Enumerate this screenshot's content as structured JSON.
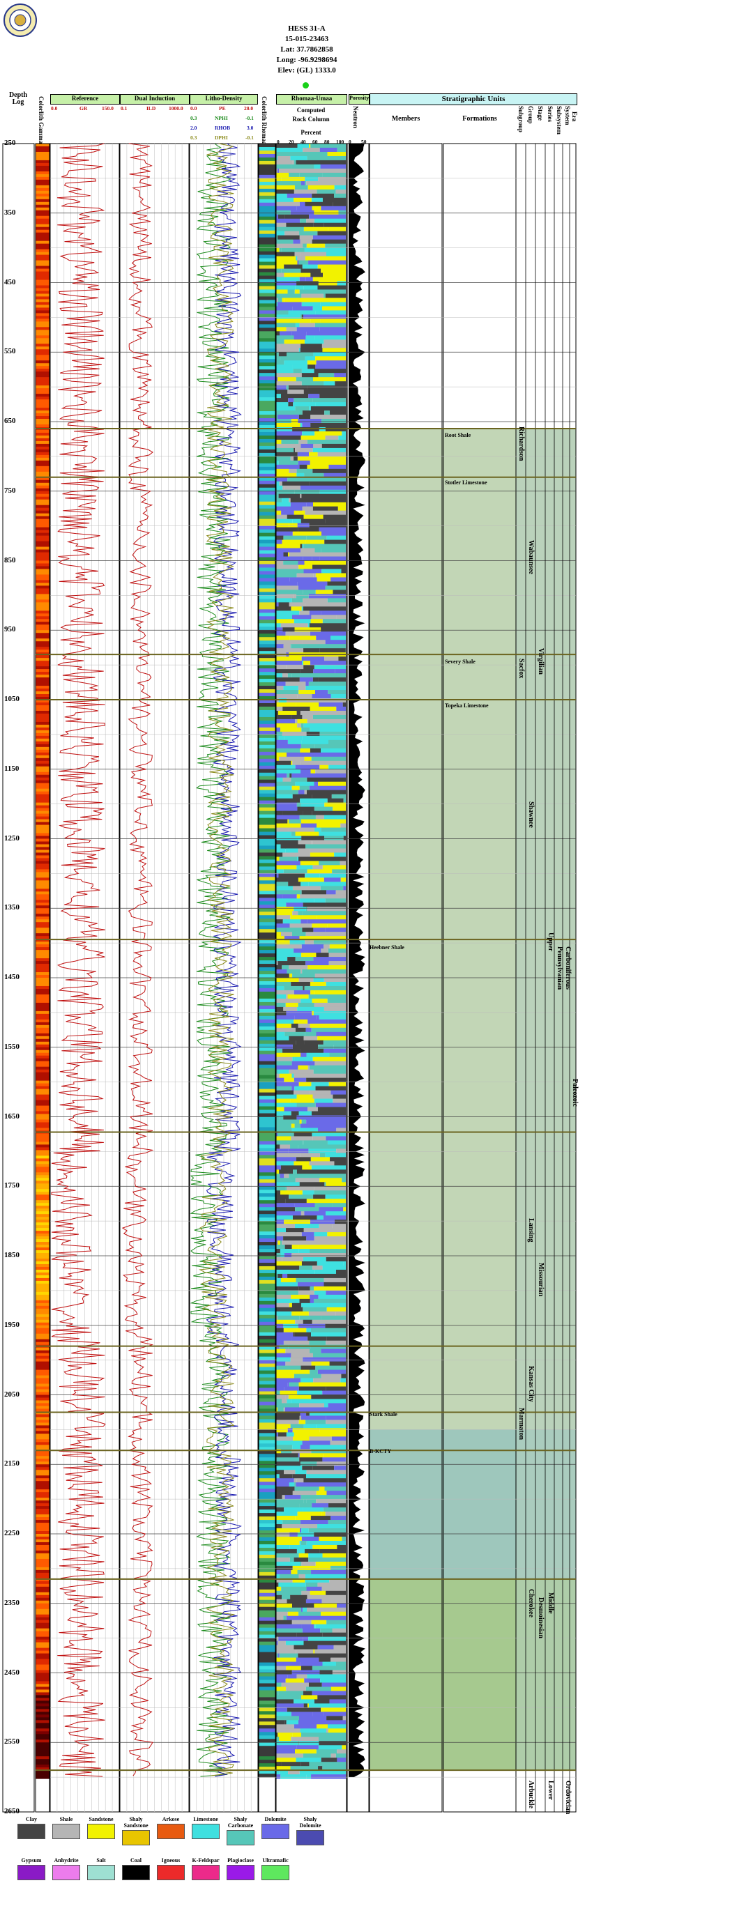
{
  "well": {
    "name": "HESS 31-A",
    "api": "15-015-23463",
    "lat": "Lat: 37.7862858",
    "long": "Long: -96.9298694",
    "elev": "Elev: (GL) 1333.0"
  },
  "columns": {
    "depth_log": "Depth Log",
    "colorlith": "Colorlith Gamma Ray",
    "reference": "Reference",
    "gr_left": "0.0",
    "gr": "GR",
    "gr_right": "150.0",
    "dual_induction": "Dual Induction",
    "ild_left": "0.1",
    "ild": "ILD",
    "ild_right": "1000.0",
    "litho_density": "Litho-Density",
    "pe_left": "0.0",
    "pe": "PE",
    "pe_right": "20.0",
    "nphi_left": "0.3",
    "nphi": "NPHI",
    "nphi_right": "-0.1",
    "rhob_left": "2.0",
    "rhob": "RHOB",
    "rhob_right": "3.0",
    "dphi_left": "0.3",
    "dphi": "DPHI",
    "dphi_right": "-0.1",
    "colorlith_rhomaa": "Colorlith Rhomaa Umaa",
    "rhomaa_umaa": "Rhomaa-Umaa",
    "computed": "Computed",
    "rock_column": "Rock Column",
    "percent": "Percent",
    "pct_ticks": [
      "0",
      "20",
      "40",
      "60",
      "80",
      "100"
    ],
    "porosity": "Porosity",
    "neutron": "Neutron",
    "por_left": "0",
    "por_right": "50",
    "strat_units": "Stratigraphic Units",
    "members": "Members",
    "formations": "Formations",
    "subgroup": "Subgroup",
    "group": "Group",
    "stage": "Stage",
    "series": "Series",
    "subsystem": "Subsystem",
    "system": "System",
    "era": "Era"
  },
  "depth_ticks": [
    "250",
    "350",
    "450",
    "550",
    "650",
    "750",
    "850",
    "950",
    "1050",
    "1150",
    "1250",
    "1350",
    "1450",
    "1550",
    "1650",
    "1750",
    "1850",
    "1950",
    "2050",
    "2150",
    "2250",
    "2350",
    "2450",
    "2550",
    "2650"
  ],
  "strat": {
    "members": [
      "Root Shale",
      "Stotler Limestone",
      "Severy Shale",
      "Topeka Limestone",
      "Heebner Shale",
      "Stark Shale",
      "B-KCTY"
    ],
    "subgroups": [
      "Richardson",
      "Sacfox"
    ],
    "groups": [
      "Wabaunsee",
      "Shawnee",
      "Lansing",
      "Kansas City",
      "Marmaton",
      "Cherokee",
      "Arbuckle"
    ],
    "stages": [
      "Virgilian",
      "Missourian",
      "Desmoinesian"
    ],
    "series": [
      "Upper",
      "Middle",
      "Lower"
    ],
    "subsystems": [
      "Pennsylvanian"
    ],
    "systems": [
      "Carboniferous",
      "Ordovician"
    ],
    "eras": [
      "Paleozoic"
    ]
  },
  "legend": [
    {
      "label": "Clay",
      "color": "#444444"
    },
    {
      "label": "Shale",
      "color": "#b5b5b5"
    },
    {
      "label": "Sandstone",
      "color": "#f2f200"
    },
    {
      "label": "Shaly Sandstone",
      "color": "#e8c500"
    },
    {
      "label": "Arkose",
      "color": "#e85a10"
    },
    {
      "label": "Limestone",
      "color": "#3fe0e0"
    },
    {
      "label": "Shaly Carbonate",
      "color": "#56c6b8"
    },
    {
      "label": "Dolomite",
      "color": "#6a6ae8"
    },
    {
      "label": "Shaly Dolomite",
      "color": "#4b4bb0"
    },
    {
      "label": "Gypsum",
      "color": "#8a1ac6"
    },
    {
      "label": "Anhydrite",
      "color": "#ec7cec"
    },
    {
      "label": "Salt",
      "color": "#9ee0d2"
    },
    {
      "label": "Coal",
      "color": "#000000"
    },
    {
      "label": "Igneous",
      "color": "#ec2a2a"
    },
    {
      "label": "K-Feldspar",
      "color": "#ec2a8a"
    },
    {
      "label": "Plagioclase",
      "color": "#9a1ae8"
    },
    {
      "label": "Ultramafic",
      "color": "#5ee85e"
    }
  ],
  "colors": {
    "header_green": "#c6f0a8",
    "header_cyan": "#c8f4f4",
    "zone_upper": "#c2d6b6",
    "zone_kc": "#9ec7bc",
    "zone_cherokee": "#a6c98f",
    "gr_curve": "#c01010",
    "marker_line": "#6b6420"
  }
}
